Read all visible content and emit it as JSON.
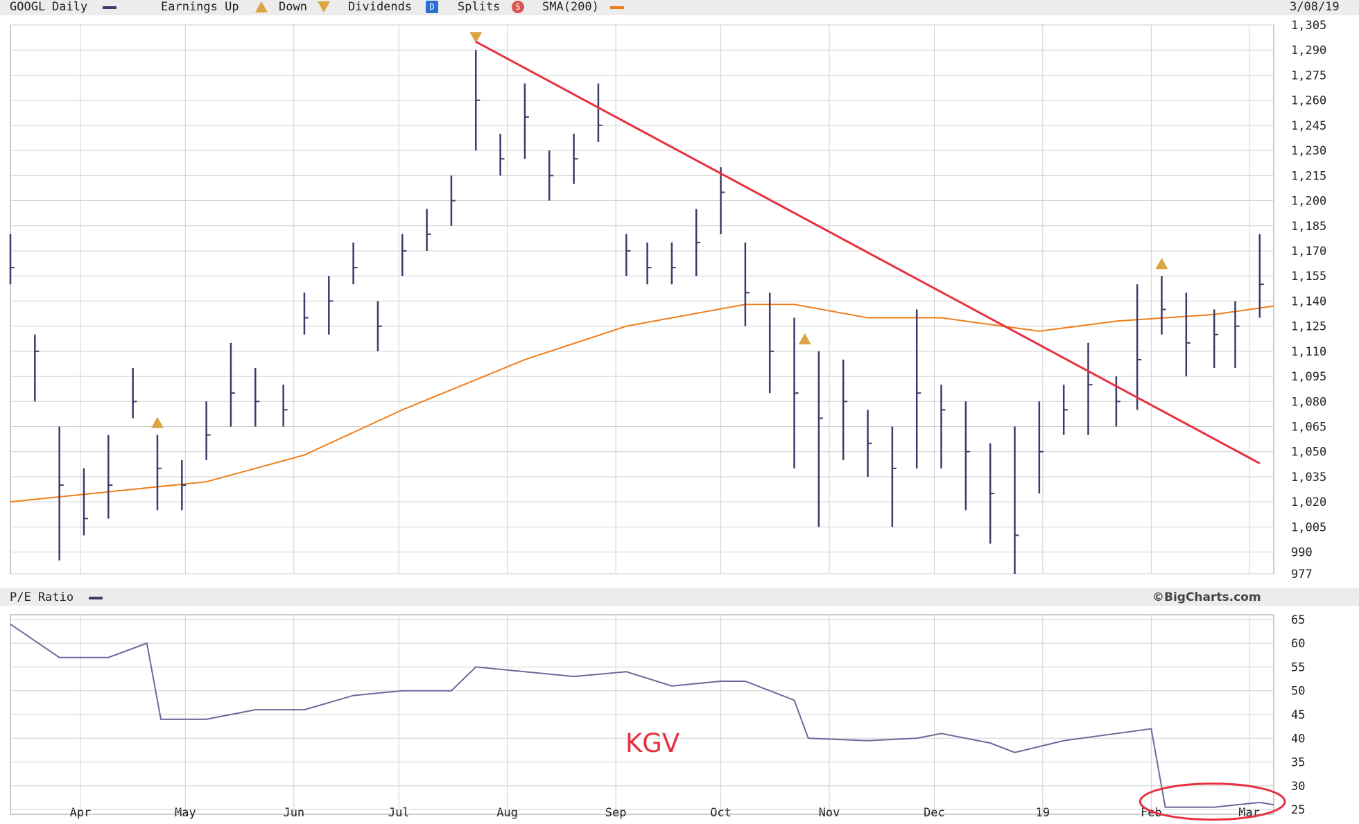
{
  "header": {
    "symbol": "GOOGL",
    "frequency": "Daily",
    "earnings_label": "Earnings Up",
    "down_label": "Down",
    "dividends_label": "Dividends",
    "dividends_icon": "D",
    "splits_label": "Splits",
    "splits_icon": "S",
    "sma_label": "SMA(200)",
    "date": "3/08/19"
  },
  "lower_panel": {
    "title": "P/E Ratio",
    "brand": "©BigCharts.com",
    "annotation": "KGV"
  },
  "colors": {
    "price_bars": "#3b3b6d",
    "sma": "#f07d1a",
    "trendline": "#e8313f",
    "grid": "#cfcfcf",
    "pe_line": "#6a6a9a",
    "annotation": "#e8313f",
    "earnings_marker": "#d9a441",
    "dividends_icon": "#2a6fd6",
    "splits_icon": "#d9534f"
  },
  "chart_data": [
    {
      "type": "line",
      "panel": "price",
      "x_tick_labels": [
        "Apr",
        "May",
        "Jun",
        "Jul",
        "Aug",
        "Sep",
        "Oct",
        "Nov",
        "Dec",
        "19",
        "Feb",
        "Mar"
      ],
      "y_tick_labels": [
        "1,305",
        "1,290",
        "1,275",
        "1,260",
        "1,245",
        "1,230",
        "1,215",
        "1,200",
        "1,185",
        "1,170",
        "1,155",
        "1,140",
        "1,125",
        "1,110",
        "1,095",
        "1,080",
        "1,065",
        "1,050",
        "1,035",
        "1,020",
        "1,005",
        "990",
        "977"
      ],
      "y_tick_values": [
        1305,
        1290,
        1275,
        1260,
        1245,
        1230,
        1215,
        1200,
        1185,
        1170,
        1155,
        1140,
        1125,
        1110,
        1095,
        1080,
        1065,
        1050,
        1035,
        1020,
        1005,
        990,
        977
      ],
      "ylim": [
        977,
        1305
      ],
      "grid": true,
      "price_series": {
        "name": "GOOGL",
        "x": [
          "2018-03-12",
          "2018-03-19",
          "2018-03-26",
          "2018-04-02",
          "2018-04-09",
          "2018-04-16",
          "2018-04-23",
          "2018-04-30",
          "2018-05-07",
          "2018-05-14",
          "2018-05-21",
          "2018-05-29",
          "2018-06-04",
          "2018-06-11",
          "2018-06-18",
          "2018-06-25",
          "2018-07-02",
          "2018-07-09",
          "2018-07-16",
          "2018-07-23",
          "2018-07-30",
          "2018-08-06",
          "2018-08-13",
          "2018-08-20",
          "2018-08-27",
          "2018-09-04",
          "2018-09-10",
          "2018-09-17",
          "2018-09-24",
          "2018-10-01",
          "2018-10-08",
          "2018-10-15",
          "2018-10-22",
          "2018-10-29",
          "2018-11-05",
          "2018-11-12",
          "2018-11-19",
          "2018-11-26",
          "2018-12-03",
          "2018-12-10",
          "2018-12-17",
          "2018-12-24",
          "2018-12-31",
          "2019-01-07",
          "2019-01-14",
          "2019-01-22",
          "2019-01-28",
          "2019-02-04",
          "2019-02-11",
          "2019-02-19",
          "2019-02-25",
          "2019-03-04"
        ],
        "values": [
          1160,
          1110,
          1030,
          1010,
          1030,
          1080,
          1040,
          1030,
          1060,
          1085,
          1080,
          1075,
          1130,
          1140,
          1160,
          1125,
          1170,
          1180,
          1200,
          1260,
          1225,
          1250,
          1215,
          1225,
          1245,
          1170,
          1160,
          1160,
          1175,
          1205,
          1145,
          1110,
          1085,
          1070,
          1080,
          1055,
          1040,
          1085,
          1075,
          1050,
          1025,
          1000,
          1050,
          1075,
          1090,
          1080,
          1105,
          1135,
          1115,
          1120,
          1125,
          1150
        ],
        "low": [
          1150,
          1080,
          985,
          1000,
          1010,
          1070,
          1015,
          1015,
          1045,
          1065,
          1065,
          1065,
          1120,
          1120,
          1150,
          1110,
          1155,
          1170,
          1185,
          1230,
          1215,
          1225,
          1200,
          1210,
          1235,
          1155,
          1150,
          1150,
          1155,
          1180,
          1125,
          1085,
          1040,
          1005,
          1045,
          1035,
          1005,
          1040,
          1040,
          1015,
          995,
          977,
          1025,
          1060,
          1060,
          1065,
          1075,
          1120,
          1095,
          1100,
          1100,
          1130
        ],
        "high": [
          1180,
          1120,
          1065,
          1040,
          1060,
          1100,
          1060,
          1045,
          1080,
          1115,
          1100,
          1090,
          1145,
          1155,
          1175,
          1140,
          1180,
          1195,
          1215,
          1290,
          1240,
          1270,
          1230,
          1240,
          1270,
          1180,
          1175,
          1175,
          1195,
          1220,
          1175,
          1145,
          1130,
          1110,
          1105,
          1075,
          1065,
          1135,
          1090,
          1080,
          1055,
          1065,
          1080,
          1090,
          1115,
          1095,
          1150,
          1155,
          1145,
          1135,
          1140,
          1180
        ]
      },
      "sma_series": {
        "name": "SMA(200)",
        "x": [
          "2018-03-12",
          "2018-04-09",
          "2018-05-07",
          "2018-06-04",
          "2018-07-02",
          "2018-08-06",
          "2018-09-04",
          "2018-10-08",
          "2018-10-22",
          "2018-11-12",
          "2018-12-03",
          "2018-12-31",
          "2019-01-22",
          "2019-02-19",
          "2019-03-08"
        ],
        "values": [
          1020,
          1026,
          1032,
          1048,
          1075,
          1105,
          1125,
          1138,
          1138,
          1130,
          1130,
          1122,
          1128,
          1132,
          1137
        ]
      },
      "markers": [
        {
          "type": "earnings-up",
          "date": "2018-04-23"
        },
        {
          "type": "earnings-down",
          "date": "2018-07-23"
        },
        {
          "type": "earnings-up",
          "date": "2018-10-25"
        },
        {
          "type": "earnings-up",
          "date": "2019-02-04"
        }
      ],
      "trendline": {
        "from": {
          "x": "2018-07-23",
          "y": 1295
        },
        "to": {
          "x": "2019-03-04",
          "y": 1043
        }
      }
    },
    {
      "type": "line",
      "panel": "pe",
      "title": "P/E Ratio",
      "y_tick_labels": [
        "65",
        "60",
        "55",
        "50",
        "45",
        "40",
        "35",
        "30",
        "25"
      ],
      "y_tick_values": [
        65,
        60,
        55,
        50,
        45,
        40,
        35,
        30,
        25
      ],
      "ylim": [
        24,
        66
      ],
      "grid": true,
      "series": [
        {
          "name": "P/E Ratio",
          "x": [
            "2018-03-12",
            "2018-03-26",
            "2018-04-09",
            "2018-04-20",
            "2018-04-24",
            "2018-05-07",
            "2018-05-21",
            "2018-06-04",
            "2018-06-18",
            "2018-07-02",
            "2018-07-16",
            "2018-07-23",
            "2018-08-06",
            "2018-08-20",
            "2018-09-04",
            "2018-09-17",
            "2018-10-01",
            "2018-10-08",
            "2018-10-22",
            "2018-10-26",
            "2018-11-12",
            "2018-11-26",
            "2018-12-03",
            "2018-12-17",
            "2018-12-24",
            "2019-01-07",
            "2019-01-22",
            "2019-02-01",
            "2019-02-05",
            "2019-02-19",
            "2019-03-04",
            "2019-03-08"
          ],
          "values": [
            64,
            57,
            57,
            60,
            44,
            44,
            46,
            46,
            49,
            50,
            50,
            55,
            54,
            53,
            54,
            51,
            52,
            52,
            48,
            40,
            39.5,
            40,
            41,
            39,
            37,
            39.5,
            41,
            42,
            25.5,
            25.5,
            26.5,
            26
          ]
        }
      ]
    }
  ]
}
